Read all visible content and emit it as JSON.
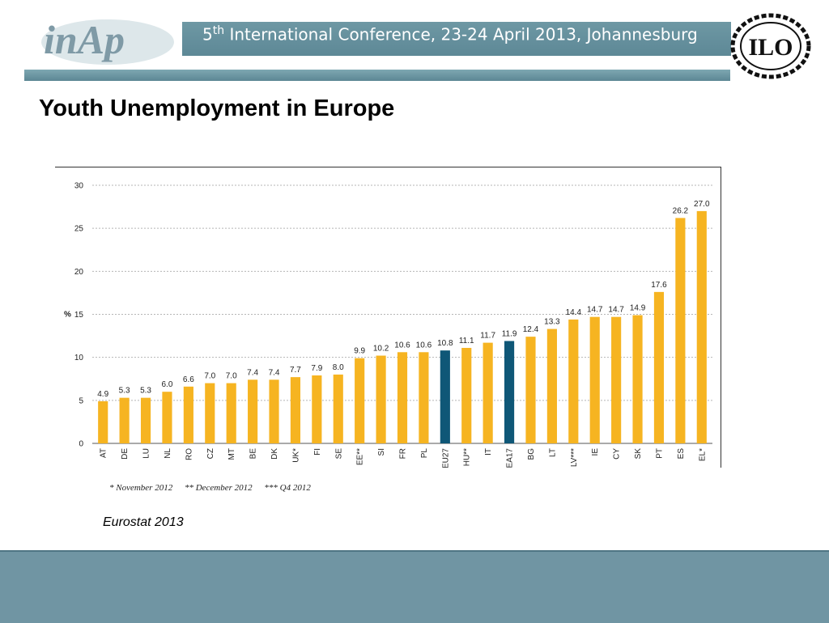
{
  "header": {
    "logo_text": "inAp",
    "conference_ordinal": "5",
    "conference_ordinal_suffix": "th",
    "conference_rest": "International Conference, 23-24 April 2013, Johannesburg",
    "ilo_logo_text": "ILO"
  },
  "slide": {
    "title": "Youth Unemployment in Europe",
    "source": "Eurostat 2013"
  },
  "footnotes": [
    "* November 2012",
    "** December 2012",
    "*** Q4 2012"
  ],
  "colors": {
    "bar_default": "#f6b421",
    "bar_highlight": "#0f5777",
    "header_bar": "#6e98a4",
    "footer_bar": "#7095a3"
  },
  "chart_data": {
    "type": "bar",
    "ylabel": "%",
    "ylim": [
      0,
      30
    ],
    "yticks": [
      0,
      5,
      10,
      15,
      20,
      25,
      30
    ],
    "grid": true,
    "categories": [
      "AT",
      "DE",
      "LU",
      "NL",
      "RO",
      "CZ",
      "MT",
      "BE",
      "DK",
      "UK*",
      "FI",
      "SE",
      "EE**",
      "SI",
      "FR",
      "PL",
      "EU27",
      "HU**",
      "IT",
      "EA17",
      "BG",
      "LT",
      "LV***",
      "IE",
      "CY",
      "SK",
      "PT",
      "ES",
      "EL*"
    ],
    "values": [
      4.9,
      5.3,
      5.3,
      6.0,
      6.6,
      7.0,
      7.0,
      7.4,
      7.4,
      7.7,
      7.9,
      8.0,
      9.9,
      10.2,
      10.6,
      10.6,
      10.8,
      11.1,
      11.7,
      11.9,
      12.4,
      13.3,
      14.4,
      14.7,
      14.7,
      14.9,
      17.6,
      26.2,
      27.0
    ],
    "data_labels": [
      "4.9",
      "5.3",
      "5.3",
      "6.0",
      "6.6",
      "7.0",
      "7.0",
      "7.4",
      "7.4",
      "7.7",
      "7.9",
      "8.0",
      "9.9",
      "10.2",
      "10.6",
      "10.6",
      "10.8",
      "11.1",
      "11.7",
      "11.9",
      "12.4",
      "13.3",
      "14.4",
      "14.7",
      "14.7",
      "14.9",
      "17.6",
      "26.2",
      "27.0"
    ],
    "highlighted": [
      "EU27",
      "EA17"
    ]
  }
}
